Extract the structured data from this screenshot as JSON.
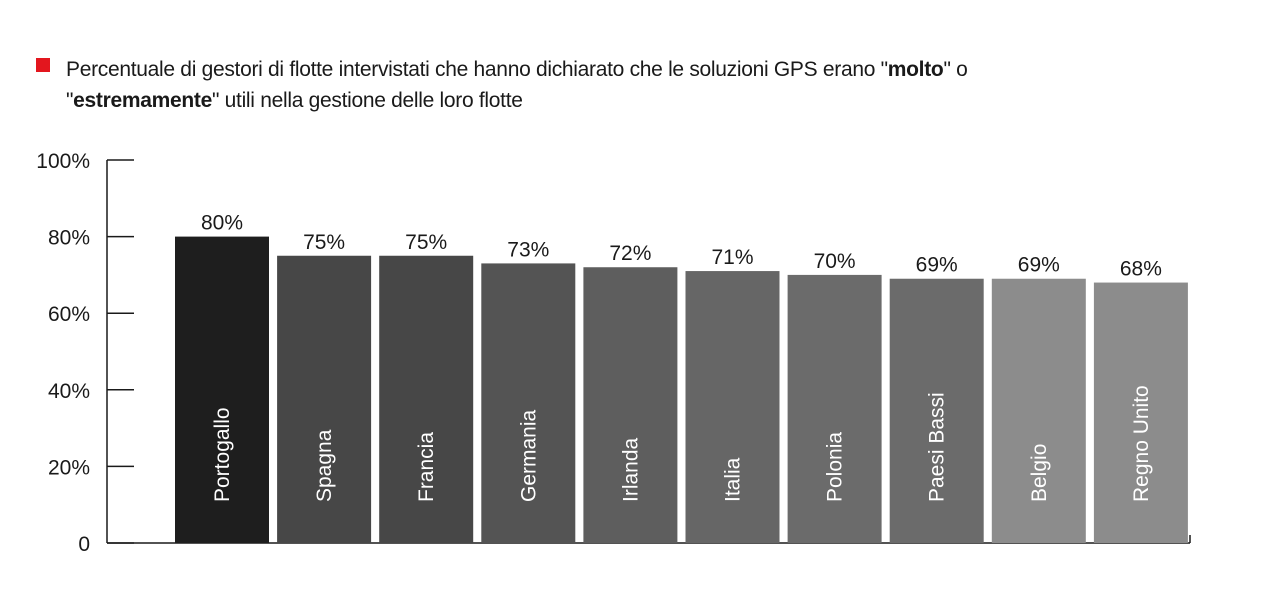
{
  "legend": {
    "swatch_color": "#e3161e",
    "text_before_1": "Percentuale di gestori di flotte intervistati che hanno dichiarato che le soluzioni GPS erano \"",
    "bold_1": "molto",
    "text_after_1": "\" o",
    "text_before_2": "\"",
    "bold_2": "estremamente",
    "text_after_2": "\" utili nella gestione delle loro flotte"
  },
  "chart_data": {
    "type": "bar",
    "categories": [
      "Portogallo",
      "Spagna",
      "Francia",
      "Germania",
      "Irlanda",
      "Italia",
      "Polonia",
      "Paesi Bassi",
      "Belgio",
      "Regno Unito"
    ],
    "values": [
      80,
      75,
      75,
      73,
      72,
      71,
      70,
      69,
      69,
      68
    ],
    "value_labels": [
      "80%",
      "75%",
      "75%",
      "73%",
      "72%",
      "71%",
      "70%",
      "69%",
      "69%",
      "68%"
    ],
    "bar_colors": [
      "#1e1e1e",
      "#474747",
      "#474747",
      "#545454",
      "#5e5e5e",
      "#666666",
      "#6b6b6b",
      "#6b6b6b",
      "#8c8c8c",
      "#8c8c8c"
    ],
    "ylim": [
      0,
      100
    ],
    "yticks": [
      0,
      20,
      40,
      60,
      80,
      100
    ],
    "ytick_labels": [
      "0",
      "20%",
      "40%",
      "60%",
      "80%",
      "100%"
    ],
    "grid": false,
    "legend_position": "top-left"
  }
}
